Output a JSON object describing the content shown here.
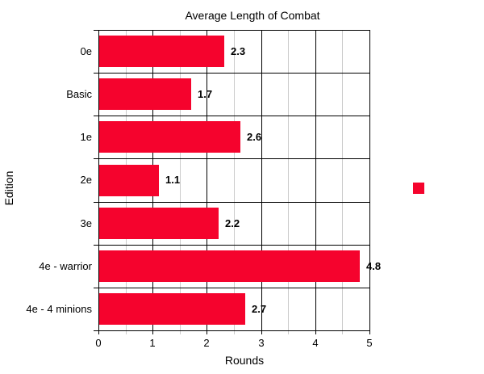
{
  "chart_data": {
    "type": "bar",
    "orientation": "horizontal",
    "title": "Average Length of Combat",
    "xlabel": "Rounds",
    "ylabel": "Edition",
    "categories": [
      "0e",
      "Basic",
      "1e",
      "2e",
      "3e",
      "4e - warrior",
      "4e - 4 minions"
    ],
    "values": [
      2.3,
      1.7,
      2.6,
      1.1,
      2.2,
      4.8,
      2.7
    ],
    "value_labels": [
      "2.3",
      "1.7",
      "2.6",
      "1.1",
      "2.2",
      "4.8",
      "2.7"
    ],
    "xlim": [
      0,
      5
    ],
    "x_ticks": [
      0,
      1,
      2,
      3,
      4,
      5
    ],
    "minor_grid_step": 0.5,
    "grid": "major-black-vertical, minor-gray-vertical, black-row-separators",
    "legend": {
      "position": "right",
      "swatch_color": "#F5032D",
      "label": ""
    }
  },
  "colors": {
    "bar": "#F5032D",
    "major_grid": "#000000",
    "minor_grid": "#cccccc",
    "background": "#ffffff",
    "text": "#000000"
  }
}
